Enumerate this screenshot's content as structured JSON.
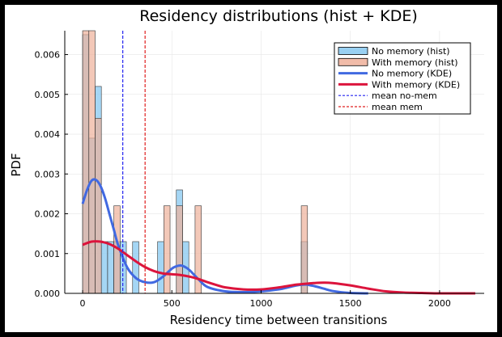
{
  "chart_data": {
    "type": "bar",
    "title": "Residency distributions (hist + KDE)",
    "xlabel": "Residency time between transitions",
    "ylabel": "PDF",
    "xlim": [
      -100,
      2250
    ],
    "ylim": [
      0,
      0.0066
    ],
    "x_ticks": [
      0,
      500,
      1000,
      1500,
      2000
    ],
    "y_ticks": [
      0.0,
      0.001,
      0.002,
      0.003,
      0.004,
      0.005,
      0.006
    ],
    "x_tick_labels": [
      "0",
      "500",
      "1000",
      "1500",
      "2000"
    ],
    "y_tick_labels": [
      "0.000",
      "0.001",
      "0.002",
      "0.003",
      "0.004",
      "0.005",
      "0.006"
    ],
    "grid": true,
    "legend_position": "top-right",
    "bin_width": 35,
    "series": [
      {
        "name": "No memory (hist)",
        "kind": "histogram",
        "color": "#87c8f0",
        "bins": [
          {
            "x0": 0,
            "value": 0.0065
          },
          {
            "x0": 35,
            "value": 0.0039
          },
          {
            "x0": 70,
            "value": 0.0052
          },
          {
            "x0": 105,
            "value": 0.0013
          },
          {
            "x0": 140,
            "value": 0.0013
          },
          {
            "x0": 175,
            "value": 0.0013
          },
          {
            "x0": 210,
            "value": 0.0013
          },
          {
            "x0": 280,
            "value": 0.0013
          },
          {
            "x0": 420,
            "value": 0.0013
          },
          {
            "x0": 525,
            "value": 0.0026
          },
          {
            "x0": 560,
            "value": 0.0013
          },
          {
            "x0": 1225,
            "value": 0.0013
          }
        ]
      },
      {
        "name": "With memory (hist)",
        "kind": "histogram",
        "color": "#eeb09a",
        "bins": [
          {
            "x0": 0,
            "value": 0.0066
          },
          {
            "x0": 35,
            "value": 0.0066
          },
          {
            "x0": 70,
            "value": 0.0044
          },
          {
            "x0": 175,
            "value": 0.0022
          },
          {
            "x0": 455,
            "value": 0.0022
          },
          {
            "x0": 525,
            "value": 0.0022
          },
          {
            "x0": 630,
            "value": 0.0022
          },
          {
            "x0": 1225,
            "value": 0.0022
          }
        ]
      },
      {
        "name": "No memory (KDE)",
        "kind": "line",
        "color": "#4169e1",
        "x": [
          0,
          25,
          50,
          75,
          100,
          125,
          150,
          175,
          200,
          250,
          300,
          350,
          400,
          450,
          500,
          525,
          550,
          575,
          600,
          650,
          700,
          800,
          900,
          1000,
          1100,
          1150,
          1200,
          1250,
          1300,
          1350,
          1400,
          1500,
          1600
        ],
        "y": [
          0.00225,
          0.0026,
          0.00283,
          0.00285,
          0.0027,
          0.0024,
          0.002,
          0.0016,
          0.0012,
          0.00065,
          0.00038,
          0.00028,
          0.00028,
          0.00042,
          0.00062,
          0.00068,
          0.0007,
          0.00066,
          0.00058,
          0.00035,
          0.00016,
          5e-05,
          3e-05,
          5e-05,
          0.0001,
          0.00015,
          0.0002,
          0.00022,
          0.00018,
          0.00012,
          6e-05,
          1e-05,
          0.0
        ]
      },
      {
        "name": "With memory (KDE)",
        "kind": "line",
        "color": "#dc143c",
        "x": [
          0,
          50,
          100,
          150,
          200,
          250,
          300,
          350,
          400,
          450,
          500,
          550,
          600,
          650,
          700,
          750,
          800,
          900,
          1000,
          1100,
          1200,
          1300,
          1350,
          1400,
          1500,
          1600,
          1700,
          1800,
          1900,
          2000,
          2100,
          2200
        ],
        "y": [
          0.00122,
          0.0013,
          0.0013,
          0.00124,
          0.00112,
          0.00096,
          0.0008,
          0.00066,
          0.00056,
          0.0005,
          0.00048,
          0.00046,
          0.00042,
          0.00036,
          0.00028,
          0.00021,
          0.00015,
          0.0001,
          0.0001,
          0.00015,
          0.00022,
          0.00026,
          0.00027,
          0.00026,
          0.0002,
          0.00012,
          5e-05,
          2e-05,
          1e-05,
          0.0,
          0.0,
          0.0
        ]
      },
      {
        "name": "mean no-mem",
        "kind": "vline",
        "color": "#2525f0",
        "x": 225
      },
      {
        "name": "mean mem",
        "kind": "vline",
        "color": "#e02020",
        "x": 350
      }
    ]
  }
}
